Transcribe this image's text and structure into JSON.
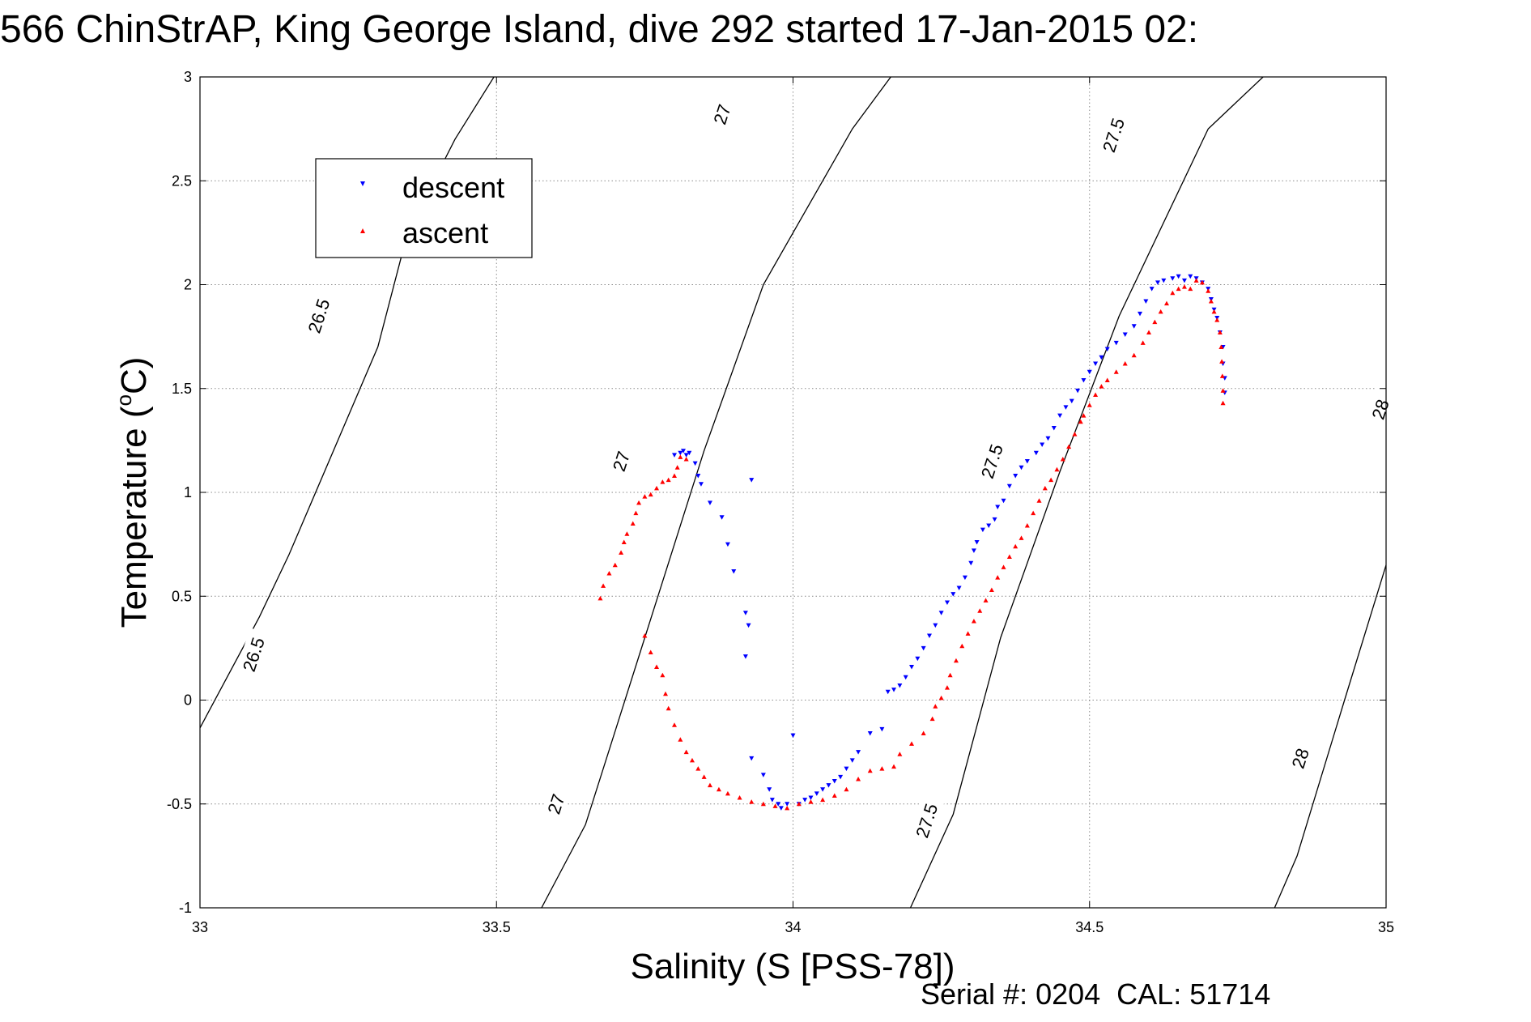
{
  "chart_data": {
    "type": "scatter",
    "title": "566 ChinStrAP, King George Island, dive 292 started 17-Jan-2015 02:",
    "xlabel": "Salinity (S [PSS-78])",
    "ylabel_prefix": "Temperature (",
    "ylabel_degree": "o",
    "ylabel_suffix": "C)",
    "xlim": [
      33,
      35
    ],
    "ylim": [
      -1,
      3
    ],
    "grid": true,
    "legend_position": "top-left",
    "xticks": [
      "33",
      "33.5",
      "34",
      "34.5",
      "35"
    ],
    "yticks": [
      "-1",
      "-0.5",
      "0",
      "0.5",
      "1",
      "1.5",
      "2",
      "2.5",
      "3"
    ],
    "footer": "Serial #: 0204  CAL: 51714",
    "colors": {
      "descent": "#0000ff",
      "ascent": "#ff0000",
      "contour": "#000000"
    },
    "density_contours": [
      {
        "level": "26.5",
        "points": [
          [
            32.997,
            -0.15
          ],
          [
            33.1,
            0.4
          ],
          [
            33.15,
            0.7
          ],
          [
            33.3,
            1.7
          ],
          [
            33.35,
            2.25
          ],
          [
            33.43,
            2.7
          ],
          [
            33.5,
            3.02
          ]
        ],
        "labels": [
          {
            "s": 33.09,
            "t": 0.22
          },
          {
            "s": 33.2,
            "t": 1.85
          }
        ]
      },
      {
        "level": "27",
        "points": [
          [
            33.576,
            -1.0
          ],
          [
            33.65,
            -0.6
          ],
          [
            33.75,
            0.3
          ],
          [
            33.85,
            1.2
          ],
          [
            33.95,
            2.0
          ],
          [
            34.1,
            2.75
          ],
          [
            34.17,
            3.02
          ]
        ],
        "labels": [
          {
            "s": 33.6,
            "t": -0.5
          },
          {
            "s": 33.71,
            "t": 1.15
          },
          {
            "s": 33.88,
            "t": 2.82
          }
        ]
      },
      {
        "level": "27.5",
        "points": [
          [
            34.198,
            -1.0
          ],
          [
            34.27,
            -0.55
          ],
          [
            34.35,
            0.3
          ],
          [
            34.45,
            1.1
          ],
          [
            34.55,
            1.85
          ],
          [
            34.7,
            2.75
          ],
          [
            34.8,
            3.02
          ]
        ],
        "labels": [
          {
            "s": 34.225,
            "t": -0.58
          },
          {
            "s": 34.335,
            "t": 1.15
          },
          {
            "s": 34.54,
            "t": 2.72
          }
        ]
      },
      {
        "level": "28",
        "points": [
          [
            34.812,
            -1.0
          ],
          [
            34.85,
            -0.75
          ],
          [
            34.93,
            0.0
          ],
          [
            35.0,
            0.65
          ]
        ],
        "labels": [
          {
            "s": 34.855,
            "t": -0.28
          },
          {
            "s": 34.99,
            "t": 1.4
          }
        ]
      }
    ],
    "series": [
      {
        "name": "descent",
        "marker": "triangle-down",
        "points": [
          [
            33.8,
            1.18
          ],
          [
            33.81,
            1.19
          ],
          [
            33.815,
            1.2
          ],
          [
            33.82,
            1.18
          ],
          [
            33.825,
            1.19
          ],
          [
            33.835,
            1.14
          ],
          [
            33.84,
            1.08
          ],
          [
            33.845,
            1.04
          ],
          [
            33.86,
            0.95
          ],
          [
            33.88,
            0.88
          ],
          [
            33.89,
            0.75
          ],
          [
            33.9,
            0.62
          ],
          [
            33.93,
            1.06
          ],
          [
            33.92,
            0.42
          ],
          [
            33.925,
            0.36
          ],
          [
            33.92,
            0.21
          ],
          [
            33.93,
            -0.28
          ],
          [
            33.95,
            -0.36
          ],
          [
            33.96,
            -0.43
          ],
          [
            33.965,
            -0.48
          ],
          [
            33.975,
            -0.5
          ],
          [
            33.98,
            -0.52
          ],
          [
            33.99,
            -0.5
          ],
          [
            34.0,
            -0.17
          ],
          [
            34.01,
            -0.5
          ],
          [
            34.02,
            -0.48
          ],
          [
            34.03,
            -0.47
          ],
          [
            34.04,
            -0.45
          ],
          [
            34.05,
            -0.43
          ],
          [
            34.06,
            -0.41
          ],
          [
            34.07,
            -0.39
          ],
          [
            34.08,
            -0.37
          ],
          [
            34.09,
            -0.33
          ],
          [
            34.1,
            -0.29
          ],
          [
            34.11,
            -0.25
          ],
          [
            34.13,
            -0.16
          ],
          [
            34.15,
            -0.14
          ],
          [
            34.16,
            0.04
          ],
          [
            34.17,
            0.05
          ],
          [
            34.18,
            0.07
          ],
          [
            34.19,
            0.11
          ],
          [
            34.2,
            0.16
          ],
          [
            34.21,
            0.2
          ],
          [
            34.22,
            0.25
          ],
          [
            34.23,
            0.31
          ],
          [
            34.24,
            0.36
          ],
          [
            34.25,
            0.42
          ],
          [
            34.26,
            0.47
          ],
          [
            34.27,
            0.51
          ],
          [
            34.28,
            0.54
          ],
          [
            34.29,
            0.59
          ],
          [
            34.3,
            0.66
          ],
          [
            34.305,
            0.72
          ],
          [
            34.31,
            0.76
          ],
          [
            34.32,
            0.82
          ],
          [
            34.33,
            0.84
          ],
          [
            34.34,
            0.87
          ],
          [
            34.345,
            0.93
          ],
          [
            34.355,
            0.96
          ],
          [
            34.365,
            1.03
          ],
          [
            34.375,
            1.08
          ],
          [
            34.385,
            1.12
          ],
          [
            34.395,
            1.15
          ],
          [
            34.41,
            1.19
          ],
          [
            34.42,
            1.23
          ],
          [
            34.43,
            1.26
          ],
          [
            34.44,
            1.31
          ],
          [
            34.45,
            1.37
          ],
          [
            34.46,
            1.41
          ],
          [
            34.47,
            1.44
          ],
          [
            34.48,
            1.49
          ],
          [
            34.49,
            1.54
          ],
          [
            34.5,
            1.58
          ],
          [
            34.51,
            1.62
          ],
          [
            34.52,
            1.65
          ],
          [
            34.53,
            1.69
          ],
          [
            34.545,
            1.72
          ],
          [
            34.56,
            1.76
          ],
          [
            34.575,
            1.8
          ],
          [
            34.585,
            1.86
          ],
          [
            34.595,
            1.92
          ],
          [
            34.605,
            1.98
          ],
          [
            34.615,
            2.01
          ],
          [
            34.625,
            2.02
          ],
          [
            34.64,
            2.03
          ],
          [
            34.65,
            2.04
          ],
          [
            34.66,
            2.02
          ],
          [
            34.67,
            2.04
          ],
          [
            34.68,
            2.03
          ],
          [
            34.69,
            2.01
          ],
          [
            34.7,
            1.98
          ],
          [
            34.705,
            1.93
          ],
          [
            34.71,
            1.88
          ],
          [
            34.715,
            1.84
          ],
          [
            34.72,
            1.77
          ],
          [
            34.725,
            1.7
          ],
          [
            34.725,
            1.62
          ],
          [
            34.728,
            1.55
          ],
          [
            34.728,
            1.48
          ]
        ]
      },
      {
        "name": "ascent",
        "marker": "triangle-up",
        "points": [
          [
            33.82,
            1.16
          ],
          [
            33.81,
            1.17
          ],
          [
            33.805,
            1.12
          ],
          [
            33.8,
            1.08
          ],
          [
            33.79,
            1.06
          ],
          [
            33.78,
            1.05
          ],
          [
            33.77,
            1.02
          ],
          [
            33.76,
            0.99
          ],
          [
            33.75,
            0.98
          ],
          [
            33.74,
            0.95
          ],
          [
            33.735,
            0.9
          ],
          [
            33.73,
            0.85
          ],
          [
            33.72,
            0.8
          ],
          [
            33.715,
            0.76
          ],
          [
            33.71,
            0.71
          ],
          [
            33.7,
            0.65
          ],
          [
            33.69,
            0.61
          ],
          [
            33.68,
            0.55
          ],
          [
            33.675,
            0.49
          ],
          [
            33.75,
            0.31
          ],
          [
            33.76,
            0.23
          ],
          [
            33.77,
            0.16
          ],
          [
            33.78,
            0.12
          ],
          [
            33.785,
            0.03
          ],
          [
            33.79,
            -0.04
          ],
          [
            33.8,
            -0.12
          ],
          [
            33.81,
            -0.19
          ],
          [
            33.82,
            -0.25
          ],
          [
            33.83,
            -0.29
          ],
          [
            33.84,
            -0.33
          ],
          [
            33.85,
            -0.37
          ],
          [
            33.86,
            -0.41
          ],
          [
            33.875,
            -0.43
          ],
          [
            33.89,
            -0.45
          ],
          [
            33.91,
            -0.47
          ],
          [
            33.93,
            -0.49
          ],
          [
            33.95,
            -0.5
          ],
          [
            33.97,
            -0.51
          ],
          [
            33.99,
            -0.52
          ],
          [
            34.01,
            -0.5
          ],
          [
            34.03,
            -0.49
          ],
          [
            34.05,
            -0.48
          ],
          [
            34.07,
            -0.46
          ],
          [
            34.09,
            -0.43
          ],
          [
            34.11,
            -0.38
          ],
          [
            34.13,
            -0.34
          ],
          [
            34.15,
            -0.33
          ],
          [
            34.17,
            -0.32
          ],
          [
            34.18,
            -0.26
          ],
          [
            34.2,
            -0.21
          ],
          [
            34.22,
            -0.16
          ],
          [
            34.235,
            -0.09
          ],
          [
            34.24,
            -0.03
          ],
          [
            34.25,
            0.01
          ],
          [
            34.26,
            0.06
          ],
          [
            34.265,
            0.12
          ],
          [
            34.275,
            0.19
          ],
          [
            34.285,
            0.26
          ],
          [
            34.295,
            0.32
          ],
          [
            34.305,
            0.38
          ],
          [
            34.315,
            0.43
          ],
          [
            34.325,
            0.48
          ],
          [
            34.335,
            0.53
          ],
          [
            34.345,
            0.59
          ],
          [
            34.355,
            0.64
          ],
          [
            34.365,
            0.69
          ],
          [
            34.375,
            0.74
          ],
          [
            34.385,
            0.78
          ],
          [
            34.395,
            0.84
          ],
          [
            34.405,
            0.9
          ],
          [
            34.415,
            0.96
          ],
          [
            34.425,
            1.02
          ],
          [
            34.435,
            1.06
          ],
          [
            34.445,
            1.11
          ],
          [
            34.455,
            1.16
          ],
          [
            34.465,
            1.22
          ],
          [
            34.475,
            1.28
          ],
          [
            34.485,
            1.34
          ],
          [
            34.49,
            1.37
          ],
          [
            34.5,
            1.42
          ],
          [
            34.51,
            1.47
          ],
          [
            34.52,
            1.51
          ],
          [
            34.53,
            1.54
          ],
          [
            34.545,
            1.58
          ],
          [
            34.56,
            1.62
          ],
          [
            34.575,
            1.66
          ],
          [
            34.59,
            1.72
          ],
          [
            34.6,
            1.77
          ],
          [
            34.61,
            1.82
          ],
          [
            34.62,
            1.87
          ],
          [
            34.63,
            1.91
          ],
          [
            34.64,
            1.96
          ],
          [
            34.65,
            1.98
          ],
          [
            34.66,
            1.99
          ],
          [
            34.67,
            1.98
          ],
          [
            34.68,
            2.02
          ],
          [
            34.69,
            2.01
          ],
          [
            34.7,
            1.97
          ],
          [
            34.705,
            1.92
          ],
          [
            34.71,
            1.87
          ],
          [
            34.715,
            1.83
          ],
          [
            34.72,
            1.77
          ],
          [
            34.722,
            1.7
          ],
          [
            34.723,
            1.63
          ],
          [
            34.724,
            1.56
          ],
          [
            34.725,
            1.49
          ],
          [
            34.725,
            1.43
          ]
        ]
      }
    ]
  }
}
